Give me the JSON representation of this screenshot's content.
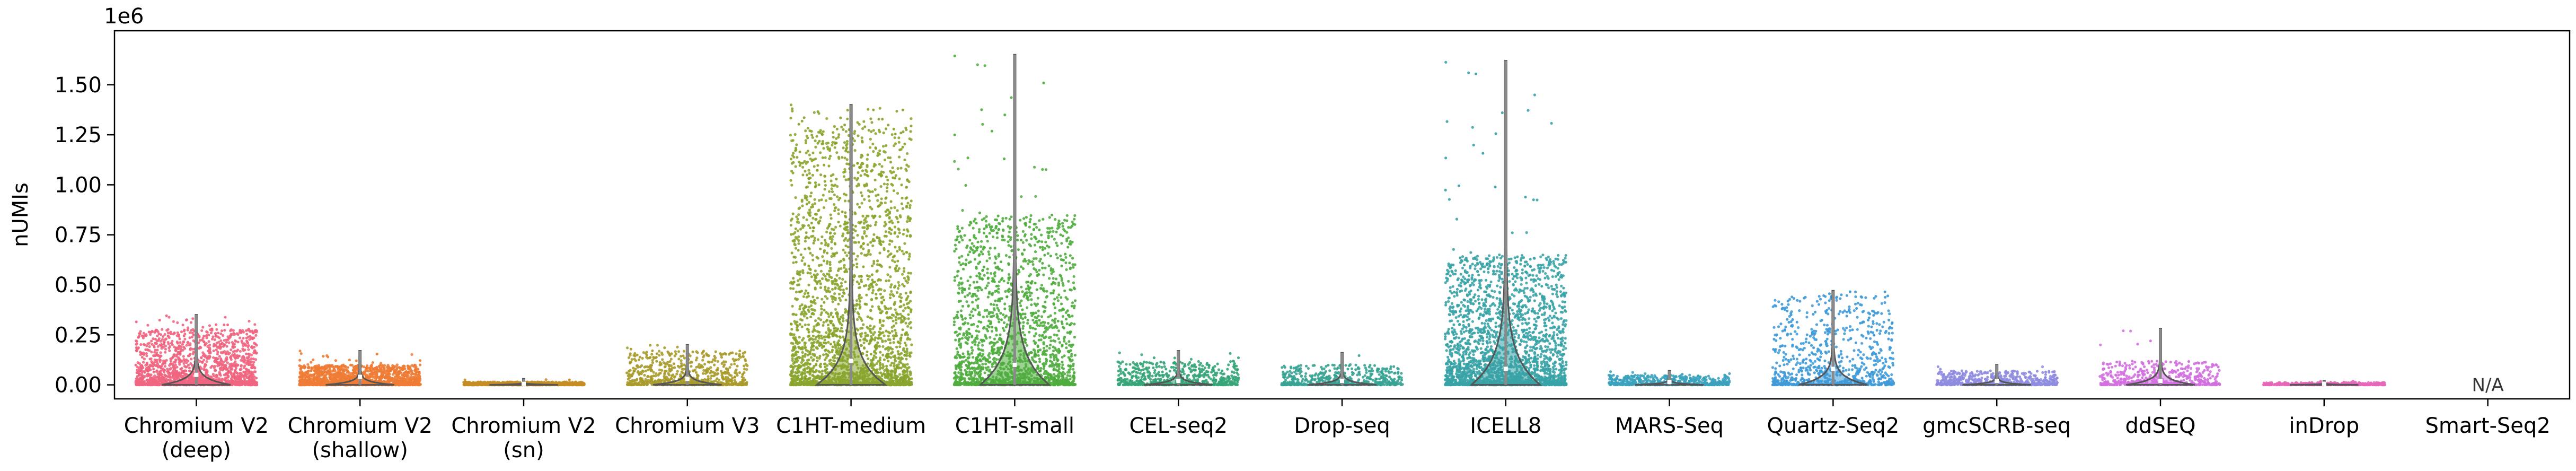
{
  "chart_data": {
    "type": "scatter",
    "subtype": "strip-violin",
    "ylabel": "nUMIs",
    "offset_label": "1e6",
    "ylim": [
      -0.07,
      1.77
    ],
    "yticks": [
      0.0,
      0.25,
      0.5,
      0.75,
      1.0,
      1.25,
      1.5
    ],
    "ytick_labels": [
      "0.00",
      "0.25",
      "0.50",
      "0.75",
      "1.00",
      "1.25",
      "1.50"
    ],
    "na_label": "N/A",
    "categories": [
      {
        "name": "Chromium V2 (deep)",
        "label_lines": [
          "Chromium V2",
          "(deep)"
        ],
        "color": "#f0657f",
        "n_points": 1700,
        "typical_max": 0.28,
        "max_value": 0.35,
        "median": 0.05
      },
      {
        "name": "Chromium V2 (shallow)",
        "label_lines": [
          "Chromium V2",
          "(shallow)"
        ],
        "color": "#ee7c35",
        "n_points": 1500,
        "typical_max": 0.1,
        "max_value": 0.17,
        "median": 0.04
      },
      {
        "name": "Chromium V2 (sn)",
        "label_lines": [
          "Chromium V2",
          "(sn)"
        ],
        "color": "#c48d27",
        "n_points": 900,
        "typical_max": 0.015,
        "max_value": 0.03,
        "median": 0.005
      },
      {
        "name": "Chromium V3",
        "label_lines": [
          "Chromium V3"
        ],
        "color": "#a89b2b",
        "n_points": 700,
        "typical_max": 0.17,
        "max_value": 0.2,
        "median": 0.03
      },
      {
        "name": "C1HT-medium",
        "label_lines": [
          "C1HT-medium"
        ],
        "color": "#89a52e",
        "n_points": 2600,
        "typical_max": 1.3,
        "max_value": 1.4,
        "median": 0.12
      },
      {
        "name": "C1HT-small",
        "label_lines": [
          "C1HT-small"
        ],
        "color": "#4fad3e",
        "n_points": 1900,
        "typical_max": 0.85,
        "max_value": 1.65,
        "median": 0.1
      },
      {
        "name": "CEL-seq2",
        "label_lines": [
          "CEL-seq2"
        ],
        "color": "#35a577",
        "n_points": 600,
        "typical_max": 0.12,
        "max_value": 0.17,
        "median": 0.02
      },
      {
        "name": "Drop-seq",
        "label_lines": [
          "Drop-seq"
        ],
        "color": "#37a394",
        "n_points": 500,
        "typical_max": 0.1,
        "max_value": 0.16,
        "median": 0.02
      },
      {
        "name": "ICELL8",
        "label_lines": [
          "ICELL8"
        ],
        "color": "#38a3a6",
        "n_points": 2400,
        "typical_max": 0.65,
        "max_value": 1.62,
        "median": 0.08
      },
      {
        "name": "MARS-Seq",
        "label_lines": [
          "MARS-Seq"
        ],
        "color": "#3ba2bd",
        "n_points": 500,
        "typical_max": 0.05,
        "max_value": 0.07,
        "median": 0.015
      },
      {
        "name": "Quartz-Seq2",
        "label_lines": [
          "Quartz-Seq2"
        ],
        "color": "#3f9ad8",
        "n_points": 800,
        "typical_max": 0.45,
        "max_value": 0.47,
        "median": 0.08
      },
      {
        "name": "gmcSCRB-seq",
        "label_lines": [
          "gmcSCRB-seq"
        ],
        "color": "#8f8ce0",
        "n_points": 600,
        "typical_max": 0.07,
        "max_value": 0.1,
        "median": 0.02
      },
      {
        "name": "ddSEQ",
        "label_lines": [
          "ddSEQ"
        ],
        "color": "#d36fe0",
        "n_points": 500,
        "typical_max": 0.12,
        "max_value": 0.28,
        "median": 0.02
      },
      {
        "name": "inDrop",
        "label_lines": [
          "inDrop"
        ],
        "color": "#e567b9",
        "n_points": 400,
        "typical_max": 0.012,
        "max_value": 0.02,
        "median": 0.005
      },
      {
        "name": "Smart-Seq2",
        "label_lines": [
          "Smart-Seq2"
        ],
        "color": "#f2689a",
        "n_points": 0,
        "typical_max": 0,
        "max_value": 0,
        "median": 0
      }
    ]
  }
}
